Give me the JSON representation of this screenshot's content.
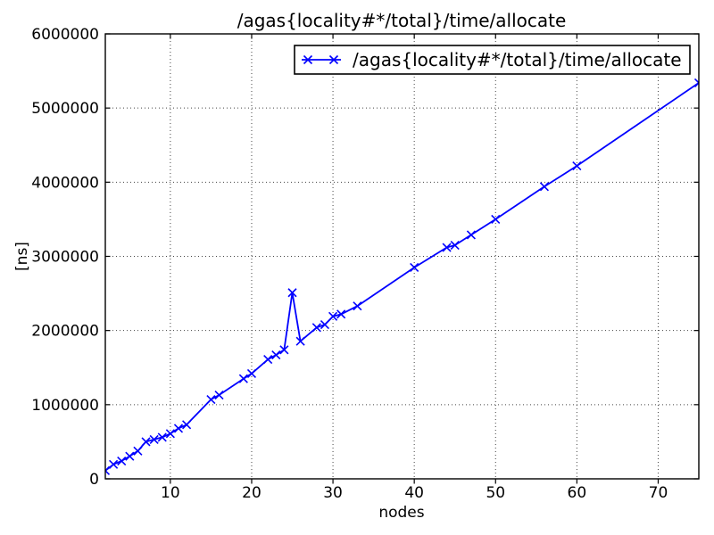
{
  "chart_data": {
    "type": "line",
    "title": "/agas{locality#*/total}/time/allocate",
    "xlabel": "nodes",
    "ylabel": "[ns]",
    "xlim": [
      2,
      75
    ],
    "ylim": [
      0,
      6000000
    ],
    "xticks": [
      10,
      20,
      30,
      40,
      50,
      60,
      70
    ],
    "yticks": [
      0,
      1000000,
      2000000,
      3000000,
      4000000,
      5000000,
      6000000
    ],
    "grid": true,
    "grid_style": "dotted",
    "legend_position": "upper right",
    "marker": "x",
    "line_color": "#0000ff",
    "background_color": "#ffffff",
    "series": [
      {
        "name": "/agas{locality#*/total}/time/allocate",
        "color": "#0000ff",
        "x": [
          2,
          3,
          4,
          5,
          6,
          7,
          8,
          9,
          10,
          11,
          12,
          15,
          16,
          19,
          20,
          22,
          23,
          24,
          25,
          26,
          28,
          29,
          30,
          31,
          33,
          40,
          44,
          45,
          47,
          50,
          56,
          60,
          75
        ],
        "y": [
          110000,
          195000,
          240000,
          305000,
          375000,
          500000,
          530000,
          560000,
          610000,
          680000,
          730000,
          1070000,
          1130000,
          1350000,
          1420000,
          1610000,
          1670000,
          1740000,
          2510000,
          1855000,
          2040000,
          2080000,
          2190000,
          2220000,
          2330000,
          2850000,
          3120000,
          3150000,
          3290000,
          3500000,
          3940000,
          4220000,
          5340000
        ]
      }
    ]
  }
}
